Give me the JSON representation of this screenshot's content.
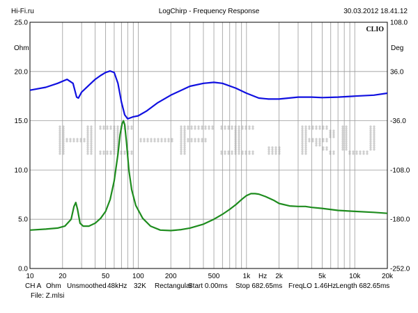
{
  "header": {
    "left": "Hi-Fi.ru",
    "center": "LogChirp - Frequency Response",
    "right": "30.03.2012 18.41.12"
  },
  "watermark": {
    "text": "HI-FI.RU",
    "color": "#cfcfcf"
  },
  "logo": "CLIO",
  "footer": {
    "line1": [
      "CH A",
      "Ohm",
      "Unsmoothed",
      "48kHz",
      "32K",
      "Rectangular",
      "Start 0.00ms",
      "Stop 682.65ms",
      "FreqLO 1.46Hz",
      "Length 682.65ms"
    ],
    "line2": "File: Z.mlsi"
  },
  "chart_data": {
    "type": "line",
    "x_scale": "log",
    "xlim": [
      10,
      20000
    ],
    "x_ticks": [
      10,
      20,
      50,
      100,
      200,
      500,
      1000,
      2000,
      5000,
      10000,
      20000
    ],
    "x_tick_labels": [
      "10",
      "20",
      "50",
      "100",
      "200",
      "500",
      "1k",
      "2k",
      "5k",
      "10k",
      "20k"
    ],
    "x_unit": "Hz",
    "y_left": {
      "unit": "Ohm",
      "lim": [
        0,
        25
      ],
      "ticks": [
        0,
        5,
        10,
        15,
        20,
        25
      ],
      "tick_labels": [
        "0.0",
        "5.0",
        "10.0",
        "15.0",
        "20.0",
        "25.0"
      ]
    },
    "y_right": {
      "unit": "Deg",
      "lim": [
        -252,
        108
      ],
      "ticks": [
        -252,
        -180,
        -108,
        -36,
        36,
        108
      ],
      "tick_labels": [
        "-252.0",
        "-180.0",
        "-108.0",
        "-36.0",
        "36.0",
        "108.0"
      ]
    },
    "grid": true,
    "series": [
      {
        "axis": "left",
        "color": "#1010e0",
        "points": [
          [
            10,
            18.1
          ],
          [
            14,
            18.4
          ],
          [
            18,
            18.8
          ],
          [
            22,
            19.2
          ],
          [
            25,
            18.8
          ],
          [
            27,
            17.4
          ],
          [
            28,
            17.3
          ],
          [
            30,
            17.9
          ],
          [
            35,
            18.6
          ],
          [
            40,
            19.2
          ],
          [
            45,
            19.6
          ],
          [
            50,
            19.9
          ],
          [
            55,
            20.05
          ],
          [
            60,
            19.9
          ],
          [
            65,
            18.8
          ],
          [
            70,
            16.9
          ],
          [
            75,
            15.6
          ],
          [
            80,
            15.2
          ],
          [
            90,
            15.4
          ],
          [
            100,
            15.5
          ],
          [
            120,
            16.0
          ],
          [
            150,
            16.8
          ],
          [
            200,
            17.6
          ],
          [
            300,
            18.5
          ],
          [
            400,
            18.8
          ],
          [
            500,
            18.9
          ],
          [
            600,
            18.8
          ],
          [
            800,
            18.3
          ],
          [
            1000,
            17.8
          ],
          [
            1300,
            17.3
          ],
          [
            1600,
            17.2
          ],
          [
            2000,
            17.2
          ],
          [
            3000,
            17.4
          ],
          [
            4000,
            17.4
          ],
          [
            5000,
            17.35
          ],
          [
            7000,
            17.4
          ],
          [
            10000,
            17.5
          ],
          [
            15000,
            17.6
          ],
          [
            20000,
            17.8
          ]
        ]
      },
      {
        "axis": "left",
        "color": "#1e8c1e",
        "points": [
          [
            10,
            3.9
          ],
          [
            14,
            4.0
          ],
          [
            18,
            4.1
          ],
          [
            21,
            4.3
          ],
          [
            24,
            5.0
          ],
          [
            25.5,
            6.3
          ],
          [
            26.5,
            6.7
          ],
          [
            27.5,
            6.0
          ],
          [
            29,
            4.6
          ],
          [
            31,
            4.3
          ],
          [
            35,
            4.3
          ],
          [
            40,
            4.6
          ],
          [
            45,
            5.1
          ],
          [
            50,
            5.8
          ],
          [
            55,
            7.0
          ],
          [
            60,
            8.9
          ],
          [
            65,
            11.6
          ],
          [
            68,
            13.6
          ],
          [
            71,
            14.7
          ],
          [
            73,
            15.0
          ],
          [
            75,
            14.6
          ],
          [
            78,
            12.8
          ],
          [
            82,
            10.0
          ],
          [
            87,
            8.0
          ],
          [
            95,
            6.4
          ],
          [
            110,
            5.1
          ],
          [
            130,
            4.3
          ],
          [
            160,
            3.9
          ],
          [
            200,
            3.85
          ],
          [
            250,
            3.95
          ],
          [
            300,
            4.1
          ],
          [
            400,
            4.5
          ],
          [
            500,
            5.0
          ],
          [
            600,
            5.5
          ],
          [
            700,
            6.0
          ],
          [
            800,
            6.5
          ],
          [
            900,
            7.0
          ],
          [
            1000,
            7.4
          ],
          [
            1100,
            7.6
          ],
          [
            1200,
            7.6
          ],
          [
            1300,
            7.55
          ],
          [
            1500,
            7.3
          ],
          [
            1800,
            6.9
          ],
          [
            2000,
            6.6
          ],
          [
            2500,
            6.35
          ],
          [
            3000,
            6.3
          ],
          [
            3500,
            6.3
          ],
          [
            4000,
            6.2
          ],
          [
            5000,
            6.1
          ],
          [
            7000,
            5.9
          ],
          [
            10000,
            5.8
          ],
          [
            15000,
            5.7
          ],
          [
            20000,
            5.6
          ]
        ]
      }
    ]
  }
}
